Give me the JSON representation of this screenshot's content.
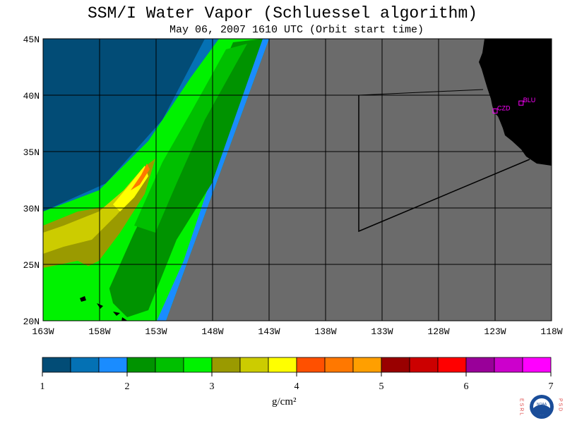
{
  "title": "SSM/I Water Vapor (Schluessel algorithm)",
  "subtitle": "May 06, 2007  1610 UTC  (Orbit start time)",
  "lat_labels": [
    "45N",
    "40N",
    "35N",
    "30N",
    "25N",
    "20N"
  ],
  "lon_labels": [
    "163W",
    "158W",
    "153W",
    "148W",
    "143W",
    "138W",
    "133W",
    "128W",
    "123W",
    "118W"
  ],
  "stations": [
    {
      "label": "BLU",
      "lon": -120.7,
      "lat": 39.3
    },
    {
      "label": "CZD",
      "lon": -123.0,
      "lat": 38.6
    }
  ],
  "colorbar": {
    "ticks": [
      "1",
      "2",
      "3",
      "4",
      "5",
      "6",
      "7"
    ],
    "unit": "g/cm²",
    "colors": [
      "#024c76",
      "#0471b4",
      "#1a8cff",
      "#009300",
      "#00bf00",
      "#00f200",
      "#9a9a00",
      "#cccc00",
      "#ffff00",
      "#ff5000",
      "#ff7800",
      "#ff9f00",
      "#990000",
      "#cc0000",
      "#ff0000",
      "#990099",
      "#cc00cc",
      "#ff00ff"
    ]
  },
  "map_colors": {
    "no_data": "#6b6b6b",
    "land": "#000000"
  },
  "logo": {
    "left": "E S R L",
    "right": "P S D",
    "center": "NOAA"
  }
}
